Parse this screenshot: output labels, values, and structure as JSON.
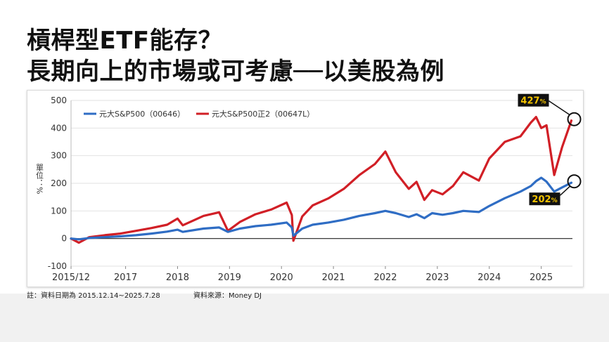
{
  "title": {
    "line1": "槓桿型ETF能存？",
    "line2": "長期向上的市場或可考慮──以美股為例"
  },
  "notes": {
    "date_range": "註：資料日期為 2015.12.14~2025.7.28",
    "source": "資料來源：Money DJ"
  },
  "colors": {
    "blue_series": "#2f6dc4",
    "red_series": "#d11f26",
    "callout_bg": "#111111",
    "callout_text": "#f2c200"
  },
  "chart_data": {
    "type": "line",
    "ylabel": "單位：%",
    "ylim": [
      -100,
      500
    ],
    "yticks": [
      -100,
      0,
      100,
      200,
      300,
      400,
      500
    ],
    "xlim": [
      2015.95,
      2025.6
    ],
    "xtick_labels": [
      "2015/12",
      "2017",
      "2018",
      "2019",
      "2020",
      "2021",
      "2022",
      "2023",
      "2024",
      "2025"
    ],
    "xtick_values": [
      2015.95,
      2017.0,
      2018.0,
      2019.0,
      2020.0,
      2021.0,
      2022.0,
      2023.0,
      2024.0,
      2025.0
    ],
    "grid": "horizontal",
    "legend_position": "top-left",
    "series": [
      {
        "name": "元大S&P500（00646）",
        "x": [
          2015.95,
          2016.1,
          2016.3,
          2016.6,
          2016.9,
          2017.2,
          2017.5,
          2017.8,
          2018.0,
          2018.1,
          2018.5,
          2018.8,
          2018.97,
          2019.2,
          2019.5,
          2019.8,
          2020.1,
          2020.2,
          2020.23,
          2020.4,
          2020.6,
          2020.9,
          2021.2,
          2021.5,
          2021.8,
          2022.0,
          2022.2,
          2022.45,
          2022.6,
          2022.75,
          2022.9,
          2023.1,
          2023.3,
          2023.5,
          2023.8,
          2024.0,
          2024.3,
          2024.6,
          2024.8,
          2024.9,
          2025.0,
          2025.1,
          2025.25,
          2025.4,
          2025.58
        ],
        "values": [
          0,
          -3,
          2,
          5,
          8,
          12,
          18,
          25,
          32,
          24,
          36,
          40,
          24,
          36,
          45,
          50,
          58,
          40,
          10,
          36,
          50,
          58,
          68,
          82,
          92,
          100,
          92,
          78,
          88,
          74,
          92,
          86,
          92,
          100,
          96,
          118,
          146,
          170,
          190,
          208,
          220,
          206,
          170,
          185,
          202
        ]
      },
      {
        "name": "元大S&P500正2（00647L）",
        "x": [
          2015.95,
          2016.1,
          2016.3,
          2016.6,
          2016.9,
          2017.2,
          2017.5,
          2017.8,
          2018.0,
          2018.1,
          2018.5,
          2018.8,
          2018.97,
          2019.2,
          2019.5,
          2019.8,
          2020.1,
          2020.2,
          2020.23,
          2020.4,
          2020.6,
          2020.9,
          2021.2,
          2021.5,
          2021.8,
          2022.0,
          2022.2,
          2022.45,
          2022.6,
          2022.75,
          2022.9,
          2023.1,
          2023.3,
          2023.5,
          2023.8,
          2024.0,
          2024.3,
          2024.6,
          2024.8,
          2024.9,
          2025.0,
          2025.1,
          2025.25,
          2025.4,
          2025.58
        ],
        "values": [
          0,
          -15,
          5,
          12,
          18,
          28,
          38,
          50,
          72,
          48,
          82,
          95,
          28,
          60,
          88,
          105,
          130,
          85,
          -8,
          80,
          120,
          145,
          180,
          230,
          270,
          315,
          240,
          180,
          205,
          140,
          175,
          160,
          190,
          240,
          210,
          290,
          350,
          370,
          420,
          440,
          400,
          410,
          230,
          330,
          427
        ]
      }
    ],
    "annotations": [
      {
        "label_value": "427",
        "unit": "%",
        "series": "元大S&P500正2（00647L）"
      },
      {
        "label_value": "202",
        "unit": "%",
        "series": "元大S&P500（00646）"
      }
    ]
  }
}
